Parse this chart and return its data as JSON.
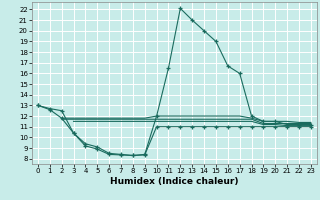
{
  "bg_color": "#c8ece9",
  "line_color": "#1a6b5e",
  "grid_color": "#b0d8d4",
  "xlabel": "Humidex (Indice chaleur)",
  "xlim": [
    -0.5,
    23.5
  ],
  "ylim": [
    7.5,
    22.7
  ],
  "yticks": [
    8,
    9,
    10,
    11,
    12,
    13,
    14,
    15,
    16,
    17,
    18,
    19,
    20,
    21,
    22
  ],
  "xticks": [
    0,
    1,
    2,
    3,
    4,
    5,
    6,
    7,
    8,
    9,
    10,
    11,
    12,
    13,
    14,
    15,
    16,
    17,
    18,
    19,
    20,
    21,
    22,
    23
  ],
  "series": [
    {
      "x": [
        0,
        1,
        2,
        3,
        4,
        5,
        6,
        7,
        8,
        9,
        10,
        11,
        12,
        13,
        14,
        15,
        16,
        17,
        18,
        19,
        20,
        21,
        22,
        23
      ],
      "y": [
        13.0,
        12.7,
        12.5,
        10.4,
        9.4,
        9.1,
        8.5,
        8.4,
        8.3,
        8.4,
        12.0,
        16.5,
        22.1,
        21.0,
        20.0,
        19.0,
        16.7,
        16.0,
        12.0,
        11.5,
        11.5,
        11.2,
        11.2,
        11.2
      ],
      "marker": true
    },
    {
      "x": [
        0,
        1,
        2,
        3,
        4,
        5,
        6,
        7,
        8,
        9,
        10,
        11,
        12,
        13,
        14,
        15,
        16,
        17,
        18,
        19,
        20,
        21,
        22,
        23
      ],
      "y": [
        13.0,
        12.6,
        11.8,
        10.4,
        9.2,
        8.9,
        8.4,
        8.35,
        8.3,
        8.35,
        11.0,
        11.0,
        11.0,
        11.0,
        11.0,
        11.0,
        11.0,
        11.0,
        11.0,
        11.0,
        11.0,
        11.0,
        11.0,
        11.0
      ],
      "marker": true
    },
    {
      "x": [
        2,
        3,
        4,
        5,
        6,
        7,
        8,
        9,
        10,
        11,
        12,
        13,
        14,
        15,
        16,
        17,
        18,
        19,
        20,
        21,
        22,
        23
      ],
      "y": [
        11.8,
        11.8,
        11.8,
        11.8,
        11.8,
        11.8,
        11.8,
        11.8,
        12.0,
        12.0,
        12.0,
        12.0,
        12.0,
        12.0,
        12.0,
        12.0,
        11.8,
        11.5,
        11.5,
        11.5,
        11.4,
        11.4
      ],
      "marker": false
    },
    {
      "x": [
        2,
        3,
        4,
        5,
        6,
        7,
        8,
        9,
        10,
        11,
        12,
        13,
        14,
        15,
        16,
        17,
        18,
        19,
        20,
        21,
        22,
        23
      ],
      "y": [
        11.7,
        11.7,
        11.7,
        11.7,
        11.7,
        11.7,
        11.7,
        11.7,
        11.7,
        11.7,
        11.7,
        11.7,
        11.7,
        11.7,
        11.7,
        11.7,
        11.7,
        11.3,
        11.3,
        11.3,
        11.3,
        11.3
      ],
      "marker": false
    },
    {
      "x": [
        3,
        4,
        5,
        6,
        7,
        8,
        9,
        10,
        11,
        12,
        13,
        14,
        15,
        16,
        17,
        18,
        19,
        20,
        21,
        22,
        23
      ],
      "y": [
        11.5,
        11.5,
        11.5,
        11.5,
        11.5,
        11.5,
        11.5,
        11.5,
        11.5,
        11.5,
        11.5,
        11.5,
        11.5,
        11.5,
        11.5,
        11.5,
        11.2,
        11.2,
        11.1,
        11.1,
        11.1
      ],
      "marker": false
    }
  ]
}
